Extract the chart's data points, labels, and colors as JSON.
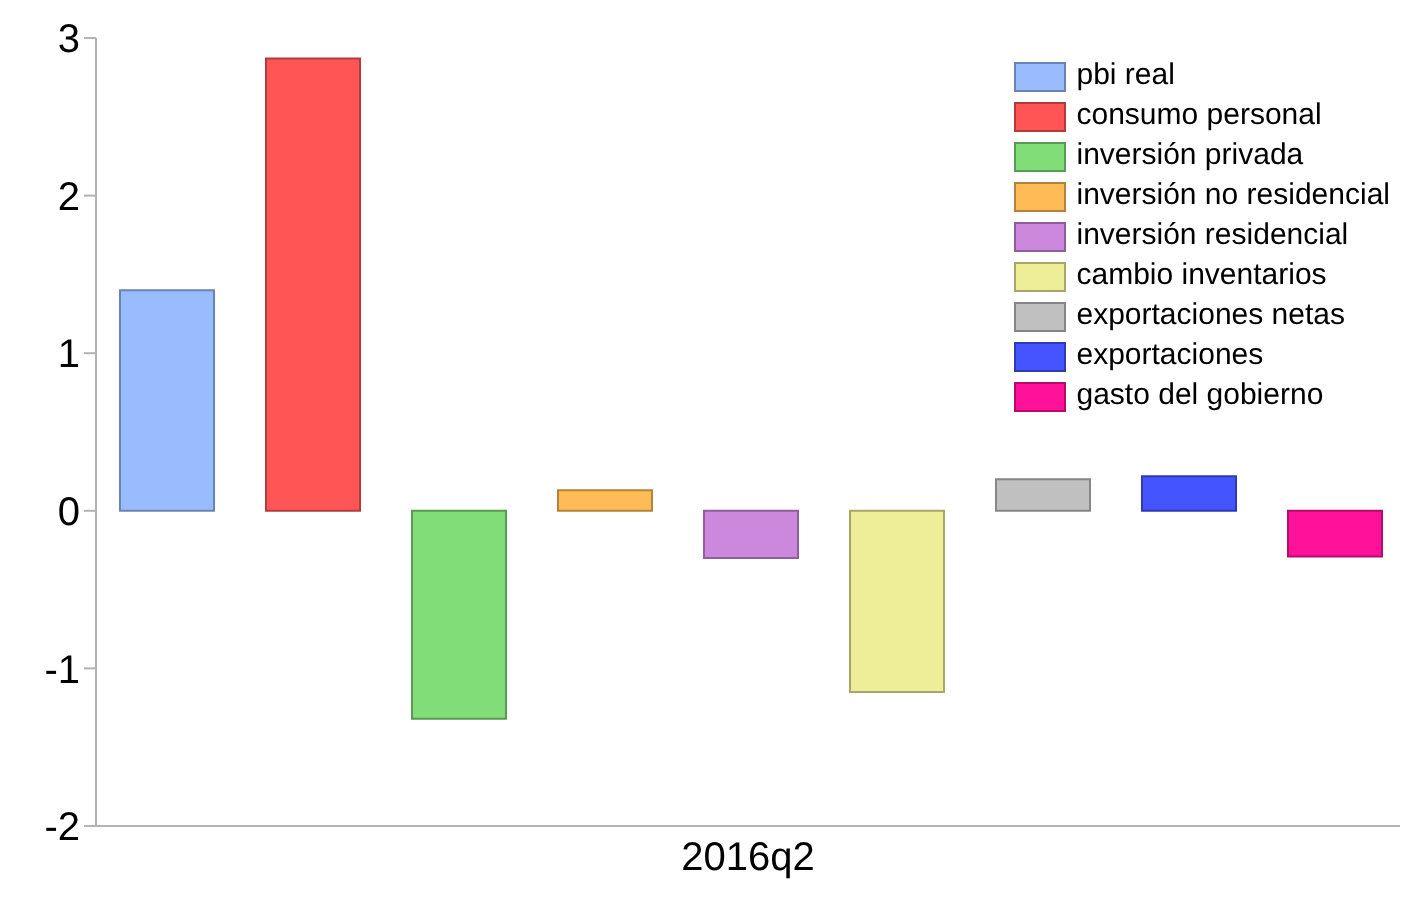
{
  "chart_data": {
    "type": "bar",
    "categories": [
      "2016q2"
    ],
    "series": [
      {
        "name": "pbi real",
        "color": "#99bbff",
        "values": [
          1.4
        ]
      },
      {
        "name": "consumo personal",
        "color": "#ff5555",
        "values": [
          2.87
        ]
      },
      {
        "name": "inversión privada",
        "color": "#80dd77",
        "values": [
          -1.32
        ]
      },
      {
        "name": "inversión no residencial",
        "color": "#ffbb55",
        "values": [
          0.13
        ]
      },
      {
        "name": "inversión residencial",
        "color": "#cc88dd",
        "values": [
          -0.3
        ]
      },
      {
        "name": "cambio inventarios",
        "color": "#eeee99",
        "values": [
          -1.15
        ]
      },
      {
        "name": "exportaciones netas",
        "color": "#c0c0c0",
        "values": [
          0.2
        ]
      },
      {
        "name": "exportaciones",
        "color": "#4455ff",
        "values": [
          0.22
        ]
      },
      {
        "name": "gasto del gobierno",
        "color": "#ff1199",
        "values": [
          -0.29
        ]
      }
    ],
    "ylim": [
      -2,
      3
    ],
    "yticks": [
      -2,
      -1,
      0,
      1,
      2,
      3
    ],
    "grid": false,
    "legend": "top right"
  }
}
